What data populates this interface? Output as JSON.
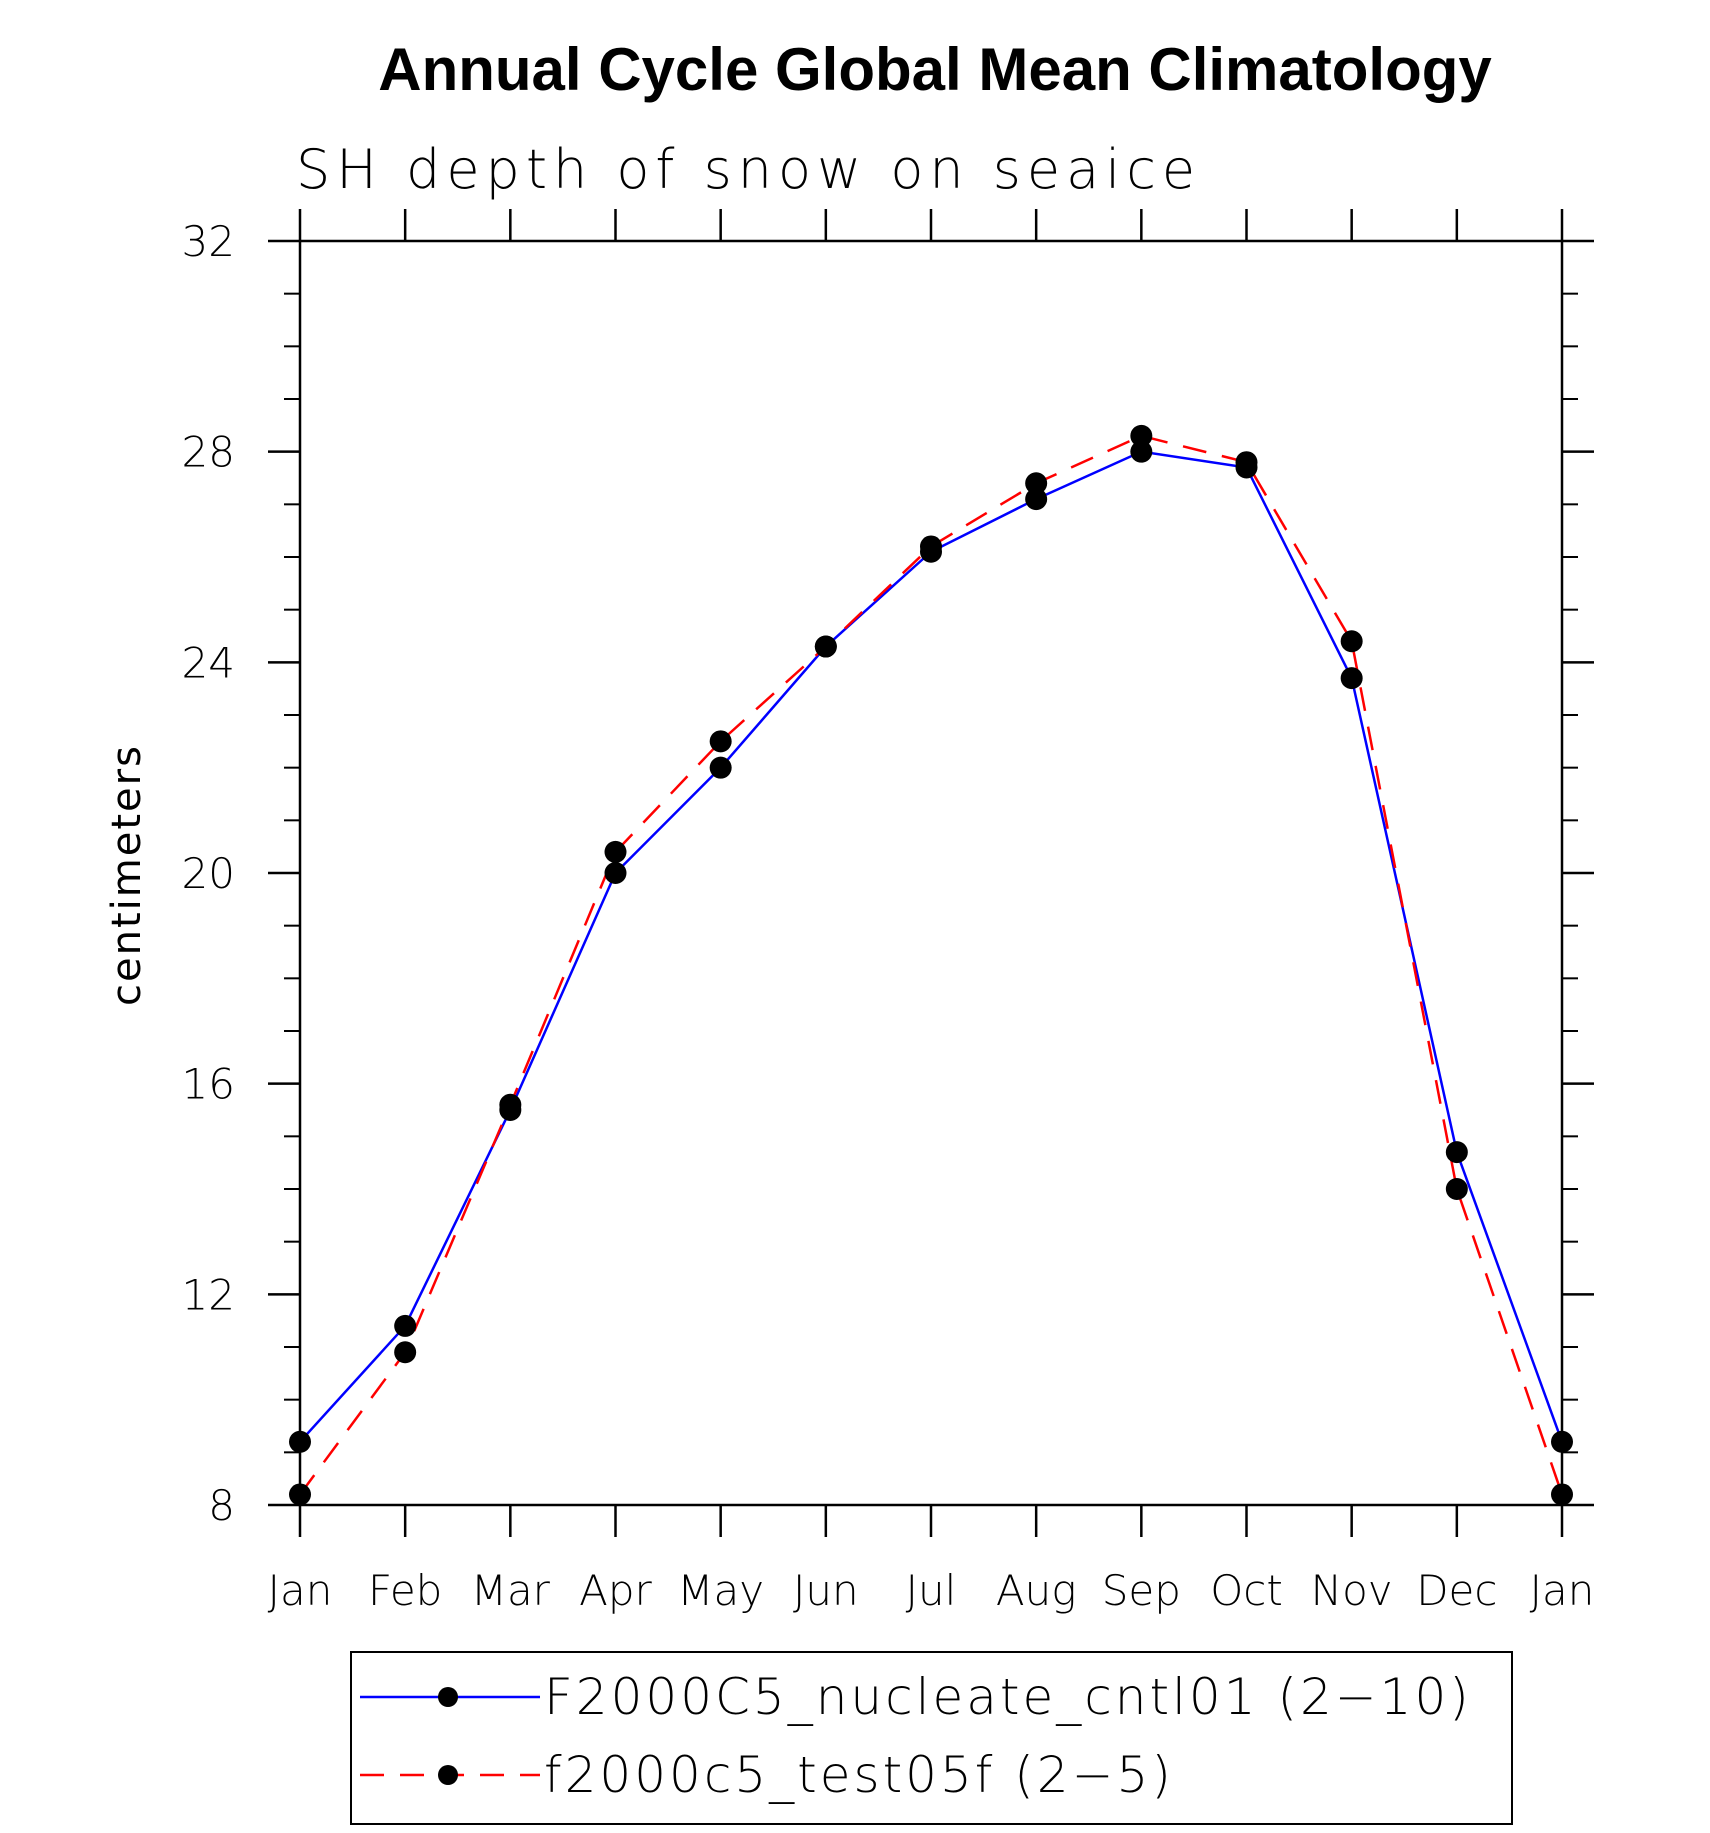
{
  "chart_data": {
    "type": "line",
    "title": "Annual Cycle Global Mean Climatology",
    "subtitle": "SH depth of snow on seaice",
    "xlabel": "",
    "ylabel": "centimeters",
    "categories": [
      "Jan",
      "Feb",
      "Mar",
      "Apr",
      "May",
      "Jun",
      "Jul",
      "Aug",
      "Sep",
      "Oct",
      "Nov",
      "Dec",
      "Jan"
    ],
    "ylim": [
      8,
      32
    ],
    "yticks": [
      "8",
      "12",
      "16",
      "20",
      "24",
      "28",
      "32"
    ],
    "grid": false,
    "legend_position": "bottom",
    "series": [
      {
        "name": "F2000C5_nucleate_cntl01 (2−10)",
        "color": "#0000ff",
        "dash": "solid",
        "values": [
          9.2,
          11.4,
          15.5,
          20.0,
          22.0,
          24.3,
          26.1,
          27.1,
          28.0,
          27.7,
          23.7,
          14.7,
          9.2
        ]
      },
      {
        "name": "f2000c5_test05f (2−5)",
        "color": "#ff0000",
        "dash": "dashed",
        "values": [
          8.2,
          10.9,
          15.6,
          20.4,
          22.5,
          24.3,
          26.2,
          27.4,
          28.3,
          27.8,
          24.4,
          14.0,
          8.2
        ]
      }
    ]
  }
}
